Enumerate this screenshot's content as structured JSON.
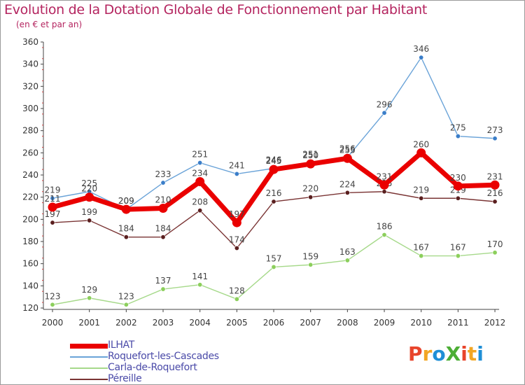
{
  "title": "Evolution de la Dotation Globale de Fonctionnement par Habitant",
  "subtitle": "(en € et par an)",
  "logo": {
    "text": "ProXiti",
    "letter_colors": [
      "#e8442b",
      "#f2a623",
      "#1f8fd6",
      "#4cae35",
      "#e8442b",
      "#f2a623",
      "#1f8fd6"
    ]
  },
  "chart_data": {
    "type": "line",
    "x": [
      "2000",
      "2001",
      "2002",
      "2003",
      "2004",
      "2005",
      "2006",
      "2007",
      "2008",
      "2009",
      "2010",
      "2011",
      "2012"
    ],
    "ylim": [
      120,
      360
    ],
    "yticks": [
      120,
      140,
      160,
      180,
      200,
      220,
      240,
      260,
      280,
      300,
      320,
      340,
      360
    ],
    "grid": false,
    "legend_position": "bottom-left",
    "series": [
      {
        "name": "Roquefort-les-Cascades",
        "color": "#6aa3d8",
        "marker": "#3b7ec9",
        "values": [
          219,
          225,
          209,
          233,
          251,
          241,
          246,
          251,
          256,
          296,
          346,
          275,
          273
        ]
      },
      {
        "name": "Carla-de-Roquefort",
        "color": "#a6d98a",
        "marker": "#8ccf5c",
        "values": [
          123,
          129,
          123,
          137,
          141,
          128,
          157,
          159,
          163,
          186,
          167,
          167,
          170
        ]
      },
      {
        "name": "Péreille",
        "color": "#7a3434",
        "marker": "#5a1f1f",
        "values": [
          197,
          199,
          184,
          184,
          208,
          174,
          216,
          220,
          224,
          225,
          219,
          219,
          216
        ]
      },
      {
        "name": "ILHAT",
        "color": "#ea0000",
        "marker": "#ea0000",
        "values": [
          211,
          220,
          209,
          210,
          234,
          197,
          245,
          250,
          255,
          231,
          260,
          230,
          231
        ]
      }
    ],
    "legend_order": [
      "ILHAT",
      "Roquefort-les-Cascades",
      "Carla-de-Roquefort",
      "Péreille"
    ]
  }
}
